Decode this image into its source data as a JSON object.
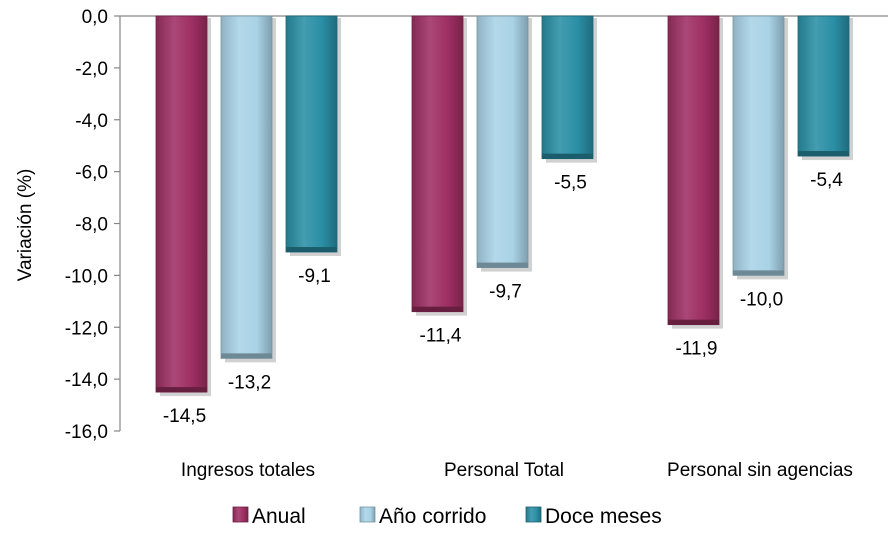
{
  "chart_data": {
    "type": "bar",
    "orientation": "vertical",
    "title": "",
    "xlabel": "",
    "ylabel": "Variación (%)",
    "ylim": [
      -16,
      0
    ],
    "yticks": [
      0,
      -2,
      -4,
      -6,
      -8,
      -10,
      -12,
      -14,
      -16
    ],
    "ytick_labels": [
      "0,0",
      "-2,0",
      "-4,0",
      "-6,0",
      "-8,0",
      "-10,0",
      "-12,0",
      "-14,0",
      "-16,0"
    ],
    "grid": false,
    "legend_position": "bottom",
    "categories": [
      "Ingresos totales",
      "Personal Total",
      "Personal sin agencias"
    ],
    "series": [
      {
        "name": "Anual",
        "color": "#9E2F63",
        "values": [
          -14.5,
          -11.4,
          -11.9
        ],
        "labels": [
          "-14,5",
          "-11,4",
          "-11,9"
        ]
      },
      {
        "name": "Año corrido",
        "color": "#A9D3E6",
        "values": [
          -13.2,
          -9.7,
          -10.0
        ],
        "labels": [
          "-13,2",
          "-9,7",
          "-10,0"
        ]
      },
      {
        "name": "Doce meses",
        "color": "#2A8FA5",
        "values": [
          -9.1,
          -5.5,
          -5.4
        ],
        "labels": [
          "-9,1",
          "-5,5",
          "-5,4"
        ]
      }
    ]
  }
}
